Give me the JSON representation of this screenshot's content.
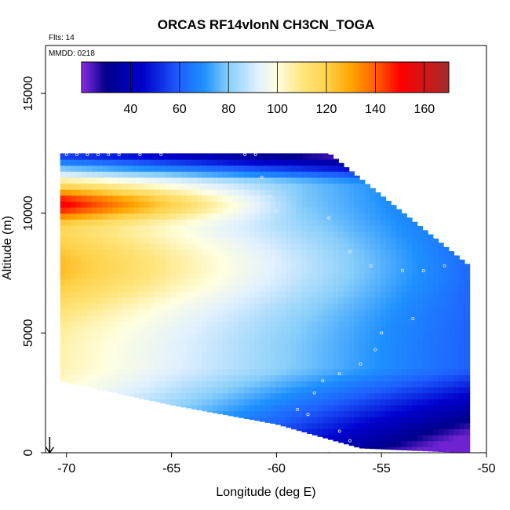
{
  "chart_data": {
    "type": "heatmap",
    "title": "ORCAS RF14vlonN CH3CN_TOGA",
    "flights_label": "Flts: 14",
    "date_label": "MMDD: 0218",
    "xlabel": "Longitude (deg E)",
    "ylabel": "Altitude (m)",
    "xlim": [
      -71,
      -50
    ],
    "ylim": [
      0,
      17000
    ],
    "x_ticks": [
      -70,
      -65,
      -60,
      -55,
      -50
    ],
    "y_ticks": [
      0,
      5000,
      10000,
      15000
    ],
    "colorbar": {
      "range": [
        20,
        170
      ],
      "ticks": [
        40,
        60,
        80,
        100,
        120,
        140,
        160
      ],
      "stops": [
        {
          "v": 20,
          "c": "#8a2be2"
        },
        {
          "v": 30,
          "c": "#00008b"
        },
        {
          "v": 45,
          "c": "#0000cd"
        },
        {
          "v": 60,
          "c": "#1e60ff"
        },
        {
          "v": 70,
          "c": "#1e90ff"
        },
        {
          "v": 80,
          "c": "#87cefa"
        },
        {
          "v": 92,
          "c": "#e0f0ff"
        },
        {
          "v": 100,
          "c": "#ffffe0"
        },
        {
          "v": 110,
          "c": "#ffe680"
        },
        {
          "v": 120,
          "c": "#ffd24a"
        },
        {
          "v": 130,
          "c": "#ffa500"
        },
        {
          "v": 140,
          "c": "#ff6000"
        },
        {
          "v": 150,
          "c": "#ff0000"
        },
        {
          "v": 170,
          "c": "#a52a2a"
        }
      ]
    },
    "field_domain": {
      "lon": [
        -70.3,
        -50.8
      ],
      "alt_top": [
        [
          -70.3,
          12500
        ],
        [
          -57.5,
          12500
        ],
        [
          -50.8,
          7800
        ]
      ],
      "alt_bottom": [
        [
          -70.3,
          3000
        ],
        [
          -65.0,
          2000
        ],
        [
          -60.0,
          1200
        ],
        [
          -56.0,
          200
        ],
        [
          -50.8,
          0
        ]
      ]
    },
    "flight_track_samples": [
      [
        -70.0,
        12450
      ],
      [
        -69.5,
        12450
      ],
      [
        -69.0,
        12450
      ],
      [
        -68.5,
        12450
      ],
      [
        -68.0,
        12450
      ],
      [
        -67.5,
        12450
      ],
      [
        -66.5,
        12450
      ],
      [
        -65.5,
        12450
      ],
      [
        -61.5,
        12450
      ],
      [
        -61.0,
        12450
      ],
      [
        -60.7,
        11500
      ],
      [
        -60.3,
        10700
      ],
      [
        -60.0,
        10100
      ],
      [
        -57.5,
        9800
      ],
      [
        -56.5,
        8400
      ],
      [
        -55.5,
        7800
      ],
      [
        -54.0,
        7600
      ],
      [
        -53.0,
        7600
      ],
      [
        -52.0,
        7800
      ],
      [
        -53.5,
        5600
      ],
      [
        -55.0,
        5000
      ],
      [
        -55.3,
        4300
      ],
      [
        -56.0,
        3700
      ],
      [
        -57.0,
        3300
      ],
      [
        -57.8,
        3000
      ],
      [
        -58.2,
        2500
      ],
      [
        -59.0,
        1800
      ],
      [
        -58.5,
        1600
      ],
      [
        -57.0,
        900
      ],
      [
        -56.5,
        500
      ],
      [
        -57.5,
        0
      ]
    ],
    "arrow_marker": {
      "lon": -70.8,
      "alt": 0
    }
  }
}
